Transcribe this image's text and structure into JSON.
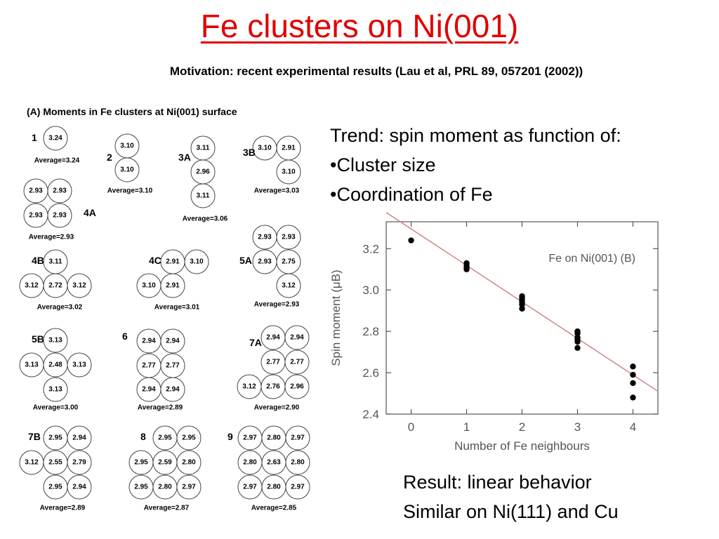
{
  "slide": {
    "title": "Fe clusters on Ni(001)",
    "motivation": "Motivation: recent experimental results (Lau et al, PRL 89, 057201 (2002))",
    "trend_lines": [
      "Trend: spin moment as function of:",
      "•Cluster size",
      "•Coordination of Fe"
    ],
    "result_lines": [
      "Result: linear behavior",
      "Similar on Ni(111) and Cu"
    ]
  },
  "clusters_panel": {
    "heading": "(A) Moments in Fe clusters at Ni(001) surface",
    "clusters": [
      {
        "label": "1",
        "average": "Average=3.24",
        "values": [
          "3.24"
        ]
      },
      {
        "label": "2",
        "average": "Average=3.10",
        "values": [
          "3.10",
          "3.10"
        ]
      },
      {
        "label": "3A",
        "average": "Average=3.06",
        "values": [
          "3.11",
          "2.96",
          "3.11"
        ]
      },
      {
        "label": "3B",
        "average": "Average=3.03",
        "values": [
          "3.10",
          "2.91",
          "3.10"
        ]
      },
      {
        "label": "4A",
        "average": "Average=2.93",
        "values": [
          "2.93",
          "2.93",
          "2.93",
          "2.93"
        ]
      },
      {
        "label": "4B",
        "average": "Average=3.02",
        "values": [
          "3.11",
          "3.12",
          "2.72",
          "3.12"
        ]
      },
      {
        "label": "4C",
        "average": "Average=3.01",
        "values": [
          "2.91",
          "3.10",
          "3.10",
          "2.91"
        ]
      },
      {
        "label": "5A",
        "average": "Average=2.93",
        "values": [
          "2.93",
          "2.93",
          "2.93",
          "2.75",
          "3.12"
        ]
      },
      {
        "label": "5B",
        "average": "Average=3.00",
        "values": [
          "3.13",
          "3.13",
          "2.48",
          "3.13",
          "3.13"
        ]
      },
      {
        "label": "6",
        "average": "Average=2.89",
        "values": [
          "2.94",
          "2.94",
          "2.77",
          "2.77",
          "2.94",
          "2.94"
        ]
      },
      {
        "label": "7A",
        "average": "Average=2.90",
        "values": [
          "2.94",
          "2.94",
          "2.77",
          "2.77",
          "3.12",
          "2.76",
          "2.96"
        ]
      },
      {
        "label": "7B",
        "average": "Average=2.89",
        "values": [
          "2.95",
          "2.94",
          "3.12",
          "2.55",
          "2.79",
          "2.95",
          "2.94"
        ]
      },
      {
        "label": "8",
        "average": "Average=2.87",
        "values": [
          "2.95",
          "2.95",
          "2.95",
          "2.59",
          "2.80",
          "2.95",
          "2.80",
          "2.97"
        ]
      },
      {
        "label": "9",
        "average": "Average=2.85",
        "values": [
          "2.97",
          "2.80",
          "2.97",
          "2.80",
          "2.63",
          "2.80",
          "2.97",
          "2.80",
          "2.97"
        ]
      }
    ]
  },
  "chart_data": {
    "type": "scatter",
    "title": "",
    "annotation": "Fe on Ni(001)  (B)",
    "xlabel": "Number of Fe neighbours",
    "ylabel": "Spin moment (μB)",
    "xlim": [
      -0.45,
      4.45
    ],
    "ylim": [
      2.4,
      3.33
    ],
    "xticks": [
      0,
      1,
      2,
      3,
      4
    ],
    "yticks": [
      2.4,
      2.6,
      2.8,
      3.0,
      3.2
    ],
    "ytick_labels": [
      "2.4",
      "2.6",
      "2.8",
      "3.0",
      "3.2"
    ],
    "grid": false,
    "series": [
      {
        "x": [
          0,
          1,
          1,
          1,
          1,
          2,
          2,
          2,
          2,
          2,
          2,
          3,
          3,
          3,
          3,
          3,
          3,
          4,
          4,
          4,
          4
        ],
        "y": [
          3.24,
          3.1,
          3.11,
          3.12,
          3.13,
          2.91,
          2.93,
          2.94,
          2.95,
          2.96,
          2.97,
          2.72,
          2.75,
          2.76,
          2.77,
          2.79,
          2.8,
          2.48,
          2.55,
          2.59,
          2.63
        ]
      }
    ],
    "fit_line": {
      "x": [
        -0.45,
        4.45
      ],
      "y": [
        3.375,
        2.51
      ]
    },
    "colors": {
      "points": "#000000",
      "fit_line": "#d08080"
    }
  }
}
